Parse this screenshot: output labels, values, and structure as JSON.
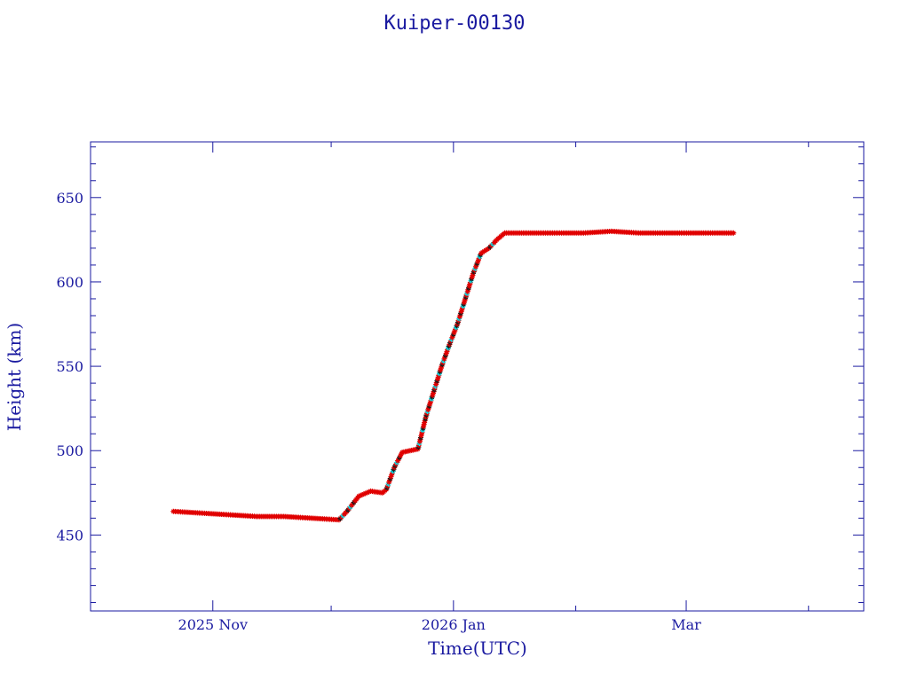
{
  "chart_data": {
    "type": "scatter",
    "title": "Kuiper-00130",
    "xlabel": "Time(UTC)",
    "ylabel": "Height (km)",
    "x_axis_kind": "date",
    "xlim": [
      "2025-10-01",
      "2026-04-15"
    ],
    "ylim": [
      405,
      683
    ],
    "yticks": [
      450,
      500,
      550,
      600,
      650
    ],
    "xtick_labels": [
      {
        "date": "2025-11-01",
        "label": "2025 Nov"
      },
      {
        "date": "2026-01-01",
        "label": "2026 Jan"
      },
      {
        "date": "2026-03-01",
        "label": "Mar"
      }
    ],
    "grid": false,
    "colors": {
      "axis": "#1a1aa0",
      "points": "#e00000",
      "highlight": "#00e5ee",
      "point_dark": "#1a1a1a"
    },
    "series": [
      {
        "color": "#e00000",
        "x": [
          "2025-10-22",
          "2025-10-29",
          "2025-11-05",
          "2025-11-12",
          "2025-11-19",
          "2025-11-26",
          "2025-12-03",
          "2025-12-05",
          "2025-12-08",
          "2025-12-11",
          "2025-12-14",
          "2025-12-15",
          "2025-12-17",
          "2025-12-19",
          "2025-12-21",
          "2025-12-23",
          "2025-12-25",
          "2025-12-27",
          "2025-12-29",
          "2025-12-31",
          "2026-01-02",
          "2026-01-04",
          "2026-01-06",
          "2026-01-08",
          "2026-01-10",
          "2026-01-12",
          "2026-01-14",
          "2026-01-17",
          "2026-01-20",
          "2026-01-23",
          "2026-01-27",
          "2026-02-03",
          "2026-02-10",
          "2026-02-17",
          "2026-02-24",
          "2026-03-03",
          "2026-03-10",
          "2026-03-13"
        ],
        "y": [
          464,
          463,
          462,
          461,
          461,
          460,
          459,
          464,
          473,
          476,
          475,
          477,
          490,
          499,
          500,
          501,
          520,
          535,
          550,
          563,
          575,
          590,
          605,
          617,
          620,
          625,
          629,
          629,
          629,
          629,
          629,
          629,
          630,
          629,
          629,
          629,
          629,
          629
        ]
      }
    ]
  }
}
